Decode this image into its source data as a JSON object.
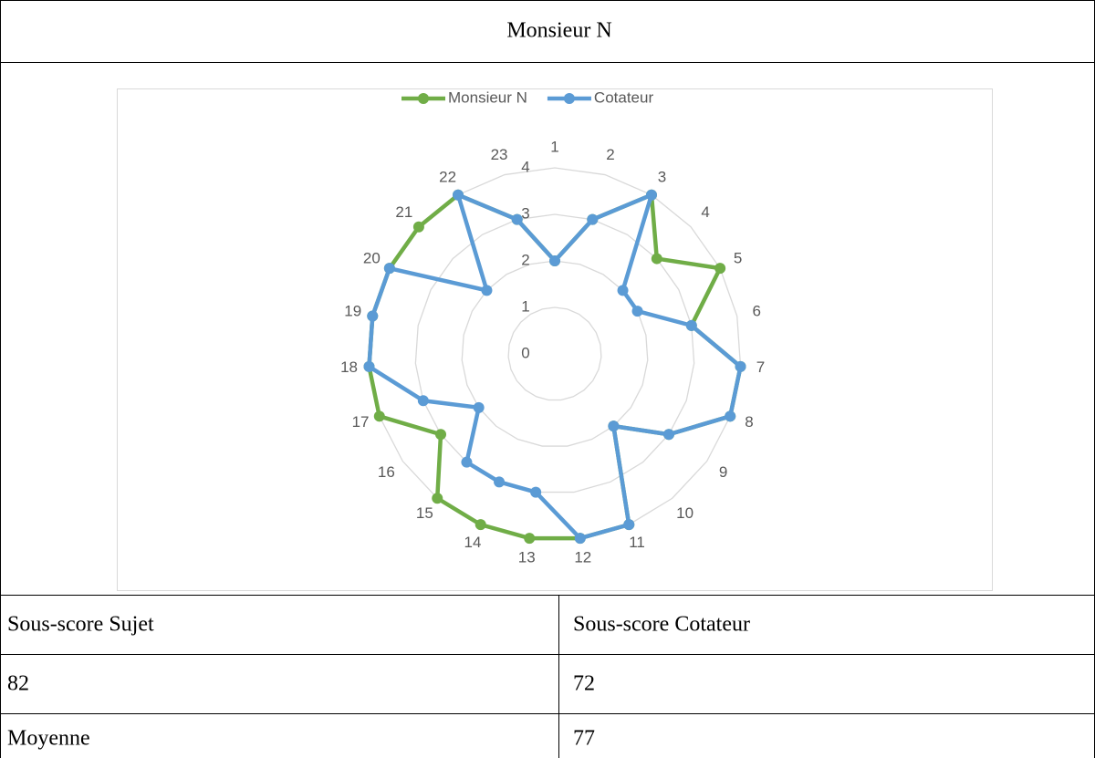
{
  "title": "Monsieur N",
  "chart_data": {
    "type": "radar",
    "categories": [
      "1",
      "2",
      "3",
      "4",
      "5",
      "6",
      "7",
      "8",
      "9",
      "10",
      "11",
      "12",
      "13",
      "14",
      "15",
      "16",
      "17",
      "18",
      "19",
      "20",
      "21",
      "22",
      "23"
    ],
    "series": [
      {
        "name": "Monsieur N",
        "color": "#70ad47",
        "values": [
          2,
          3,
          4,
          3,
          4,
          3,
          4,
          4,
          3,
          2,
          4,
          4,
          4,
          4,
          4,
          3,
          4,
          4,
          4,
          4,
          4,
          4,
          3
        ]
      },
      {
        "name": "Cotateur",
        "color": "#5b9bd5",
        "values": [
          2,
          3,
          4,
          2,
          2,
          3,
          4,
          4,
          3,
          2,
          4,
          4,
          3,
          3,
          3,
          2,
          3,
          4,
          4,
          4,
          2,
          4,
          3
        ]
      }
    ],
    "rlim": [
      0,
      4
    ],
    "rticks": [
      0,
      1,
      2,
      3,
      4
    ],
    "grid": true,
    "legend": "top"
  },
  "table": {
    "header": [
      "Sous-score Sujet",
      "Sous-score Cotateur"
    ],
    "rows": [
      [
        "82",
        "72"
      ],
      [
        "Moyenne",
        "77"
      ]
    ]
  }
}
